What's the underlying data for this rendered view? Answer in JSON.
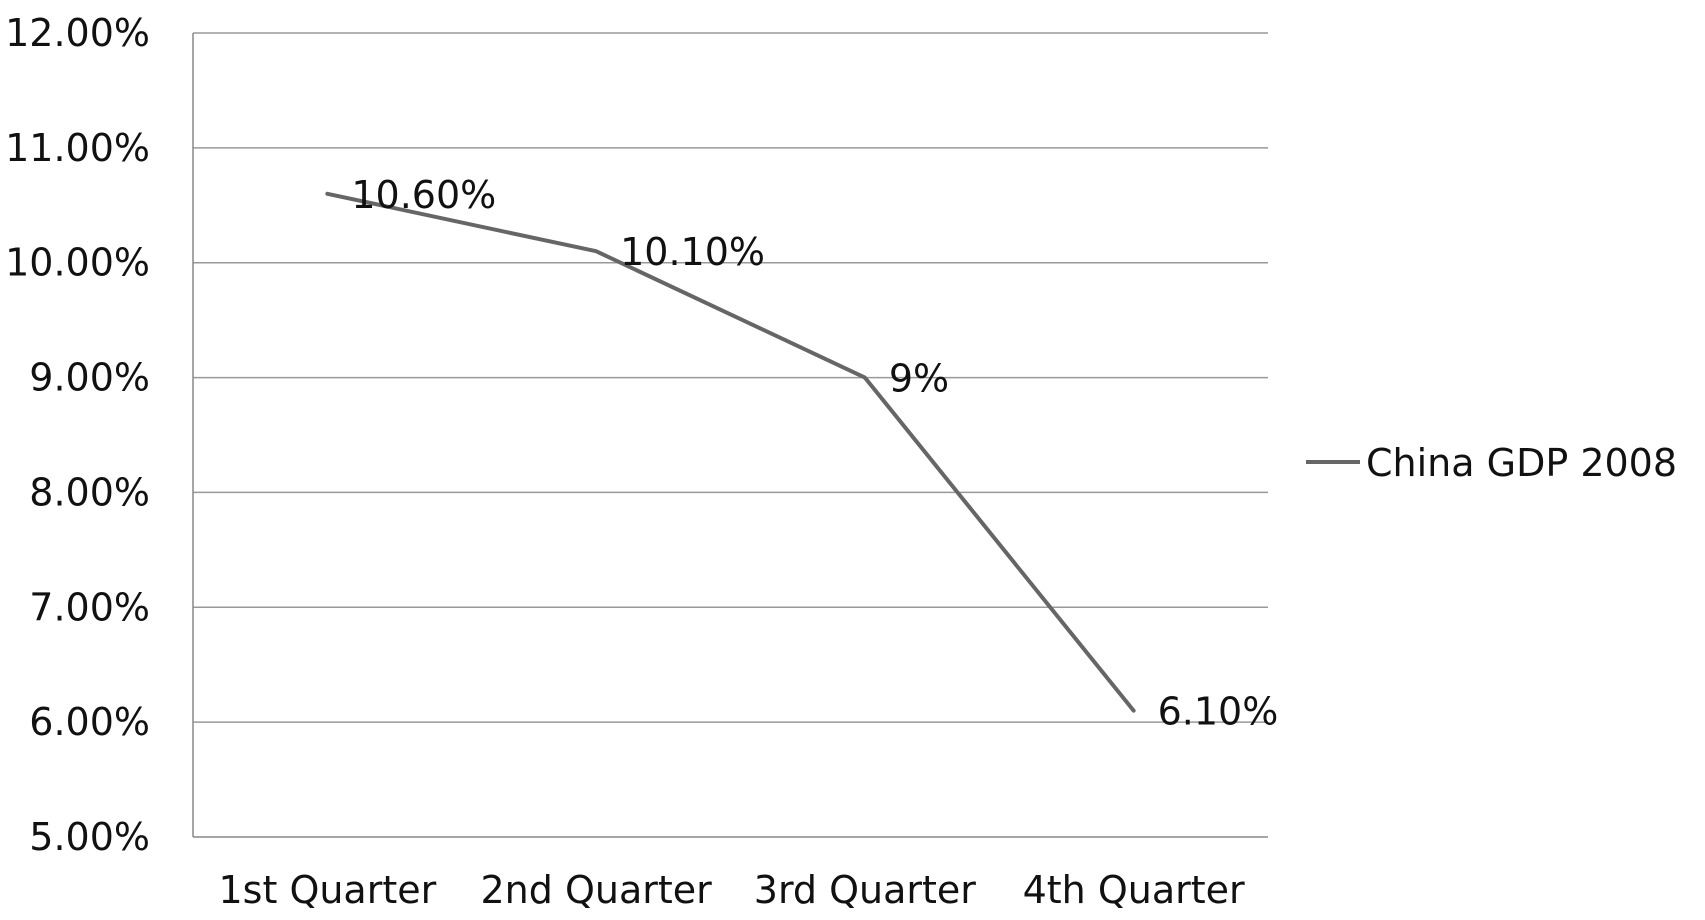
{
  "chart_data": {
    "type": "line",
    "title": "",
    "xlabel": "",
    "ylabel": "",
    "categories": [
      "1st Quarter",
      "2nd Quarter",
      "3rd Quarter",
      "4th Quarter"
    ],
    "series": [
      {
        "name": "China GDP 2008",
        "values": [
          10.6,
          10.1,
          9.0,
          6.1
        ],
        "labels": [
          "10.60%",
          "10.10%",
          "9%",
          "6.10%"
        ],
        "color": "#666666"
      }
    ],
    "ylim": [
      5,
      12
    ],
    "yticks": [
      5,
      6,
      7,
      8,
      9,
      10,
      11,
      12
    ],
    "ytick_labels": [
      "5.00%",
      "6.00%",
      "7.00%",
      "8.00%",
      "9.00%",
      "10.00%",
      "11.00%",
      "12.00%"
    ],
    "grid": true,
    "gridline_color": "#999999",
    "axis_color": "#888888",
    "text_color": "#111111",
    "legend": {
      "position": "right",
      "entries": [
        "China GDP 2008"
      ]
    }
  }
}
